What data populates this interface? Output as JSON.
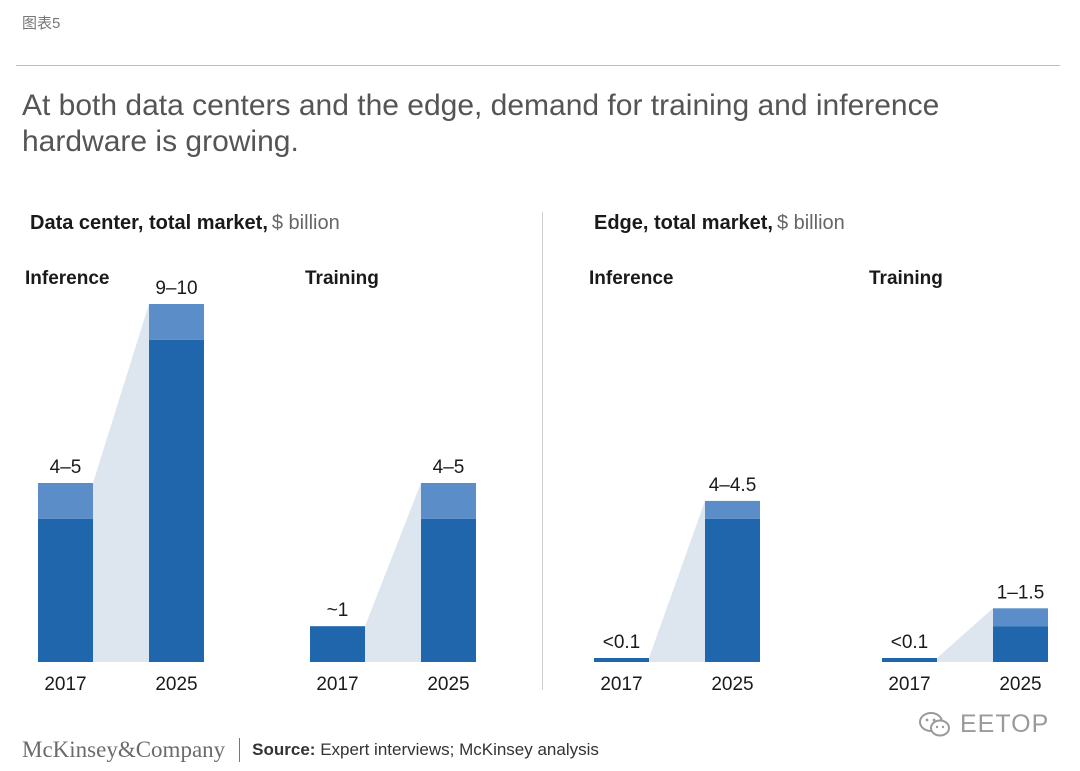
{
  "tag": "图表5",
  "title": "At both data centers and the edge, demand for training and inference hardware is growing.",
  "sections": [
    {
      "title": "Data center, total market,",
      "unit": "$ billion"
    },
    {
      "title": "Edge, total market,",
      "unit": "$ billion"
    }
  ],
  "chart_data": [
    {
      "type": "bar",
      "panel": "Data center",
      "title": "Inference",
      "unit": "$ billion",
      "categories": [
        "2017",
        "2025"
      ],
      "low": [
        4,
        9
      ],
      "high": [
        5,
        10
      ],
      "labels": [
        "4–5",
        "9–10"
      ],
      "ylim": [
        0,
        10
      ]
    },
    {
      "type": "bar",
      "panel": "Data center",
      "title": "Training",
      "unit": "$ billion",
      "categories": [
        "2017",
        "2025"
      ],
      "low": [
        1,
        4
      ],
      "high": [
        1,
        5
      ],
      "labels": [
        "~1",
        "4–5"
      ],
      "ylim": [
        0,
        10
      ]
    },
    {
      "type": "bar",
      "panel": "Edge",
      "title": "Inference",
      "unit": "$ billion",
      "categories": [
        "2017",
        "2025"
      ],
      "low": [
        0.1,
        4
      ],
      "high": [
        0.1,
        4.5
      ],
      "labels": [
        "<0.1",
        "4–4.5"
      ],
      "ylim": [
        0,
        10
      ]
    },
    {
      "type": "bar",
      "panel": "Edge",
      "title": "Training",
      "unit": "$ billion",
      "categories": [
        "2017",
        "2025"
      ],
      "low": [
        0.1,
        1
      ],
      "high": [
        0.1,
        1.5
      ],
      "labels": [
        "<0.1",
        "1–1.5"
      ],
      "ylim": [
        0,
        10
      ]
    }
  ],
  "colors": {
    "bar_dark": "#1f66ad",
    "bar_light": "#5b8ec8",
    "connector": "#dde5ef",
    "text": "#1a1a1a"
  },
  "footer": {
    "logo": "McKinsey&Company",
    "source_label": "Source:",
    "source_text": "Expert interviews; McKinsey analysis"
  },
  "watermark": "EETOP"
}
